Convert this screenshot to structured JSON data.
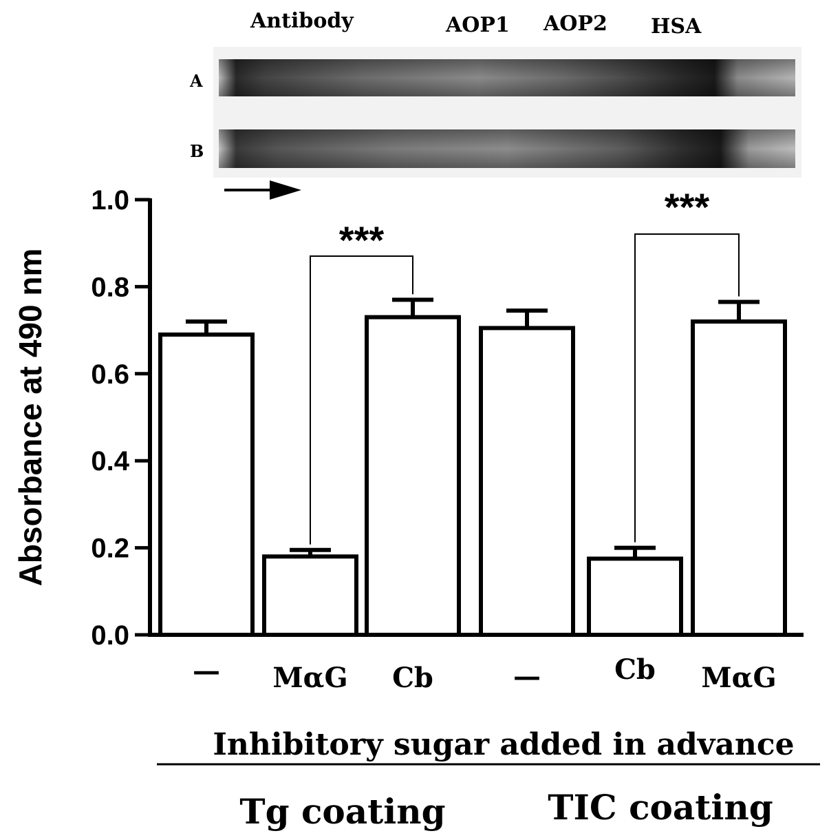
{
  "gel": {
    "header_labels": [
      "Antibody",
      "AOP1",
      "AOP2",
      "HSA"
    ],
    "lanes": [
      "A",
      "B"
    ]
  },
  "chart_data": {
    "type": "bar",
    "categories": [
      "—",
      "MαG",
      "Cb",
      "—",
      "Cb",
      "MαG"
    ],
    "values": [
      0.69,
      0.18,
      0.73,
      0.705,
      0.175,
      0.72
    ],
    "errors": [
      0.03,
      0.015,
      0.04,
      0.04,
      0.025,
      0.045
    ],
    "ylabel": "Absorbance at 490 nm",
    "ylim": [
      0,
      1.0
    ],
    "yticks": [
      "0.0",
      "0.2",
      "0.4",
      "0.6",
      "0.8",
      "1.0"
    ],
    "xlabel": "Inhibitory sugar added in advance",
    "groups": [
      {
        "label": "Tg coating",
        "categories": [
          0,
          1,
          2
        ]
      },
      {
        "label": "TIC coating",
        "categories": [
          3,
          4,
          5
        ]
      }
    ],
    "significance": [
      {
        "from": 1,
        "to": 2,
        "label": "***"
      },
      {
        "from": 4,
        "to": 5,
        "label": "***"
      }
    ]
  },
  "colors": {
    "bar_fill": "#ffffff",
    "stroke": "#000000"
  }
}
